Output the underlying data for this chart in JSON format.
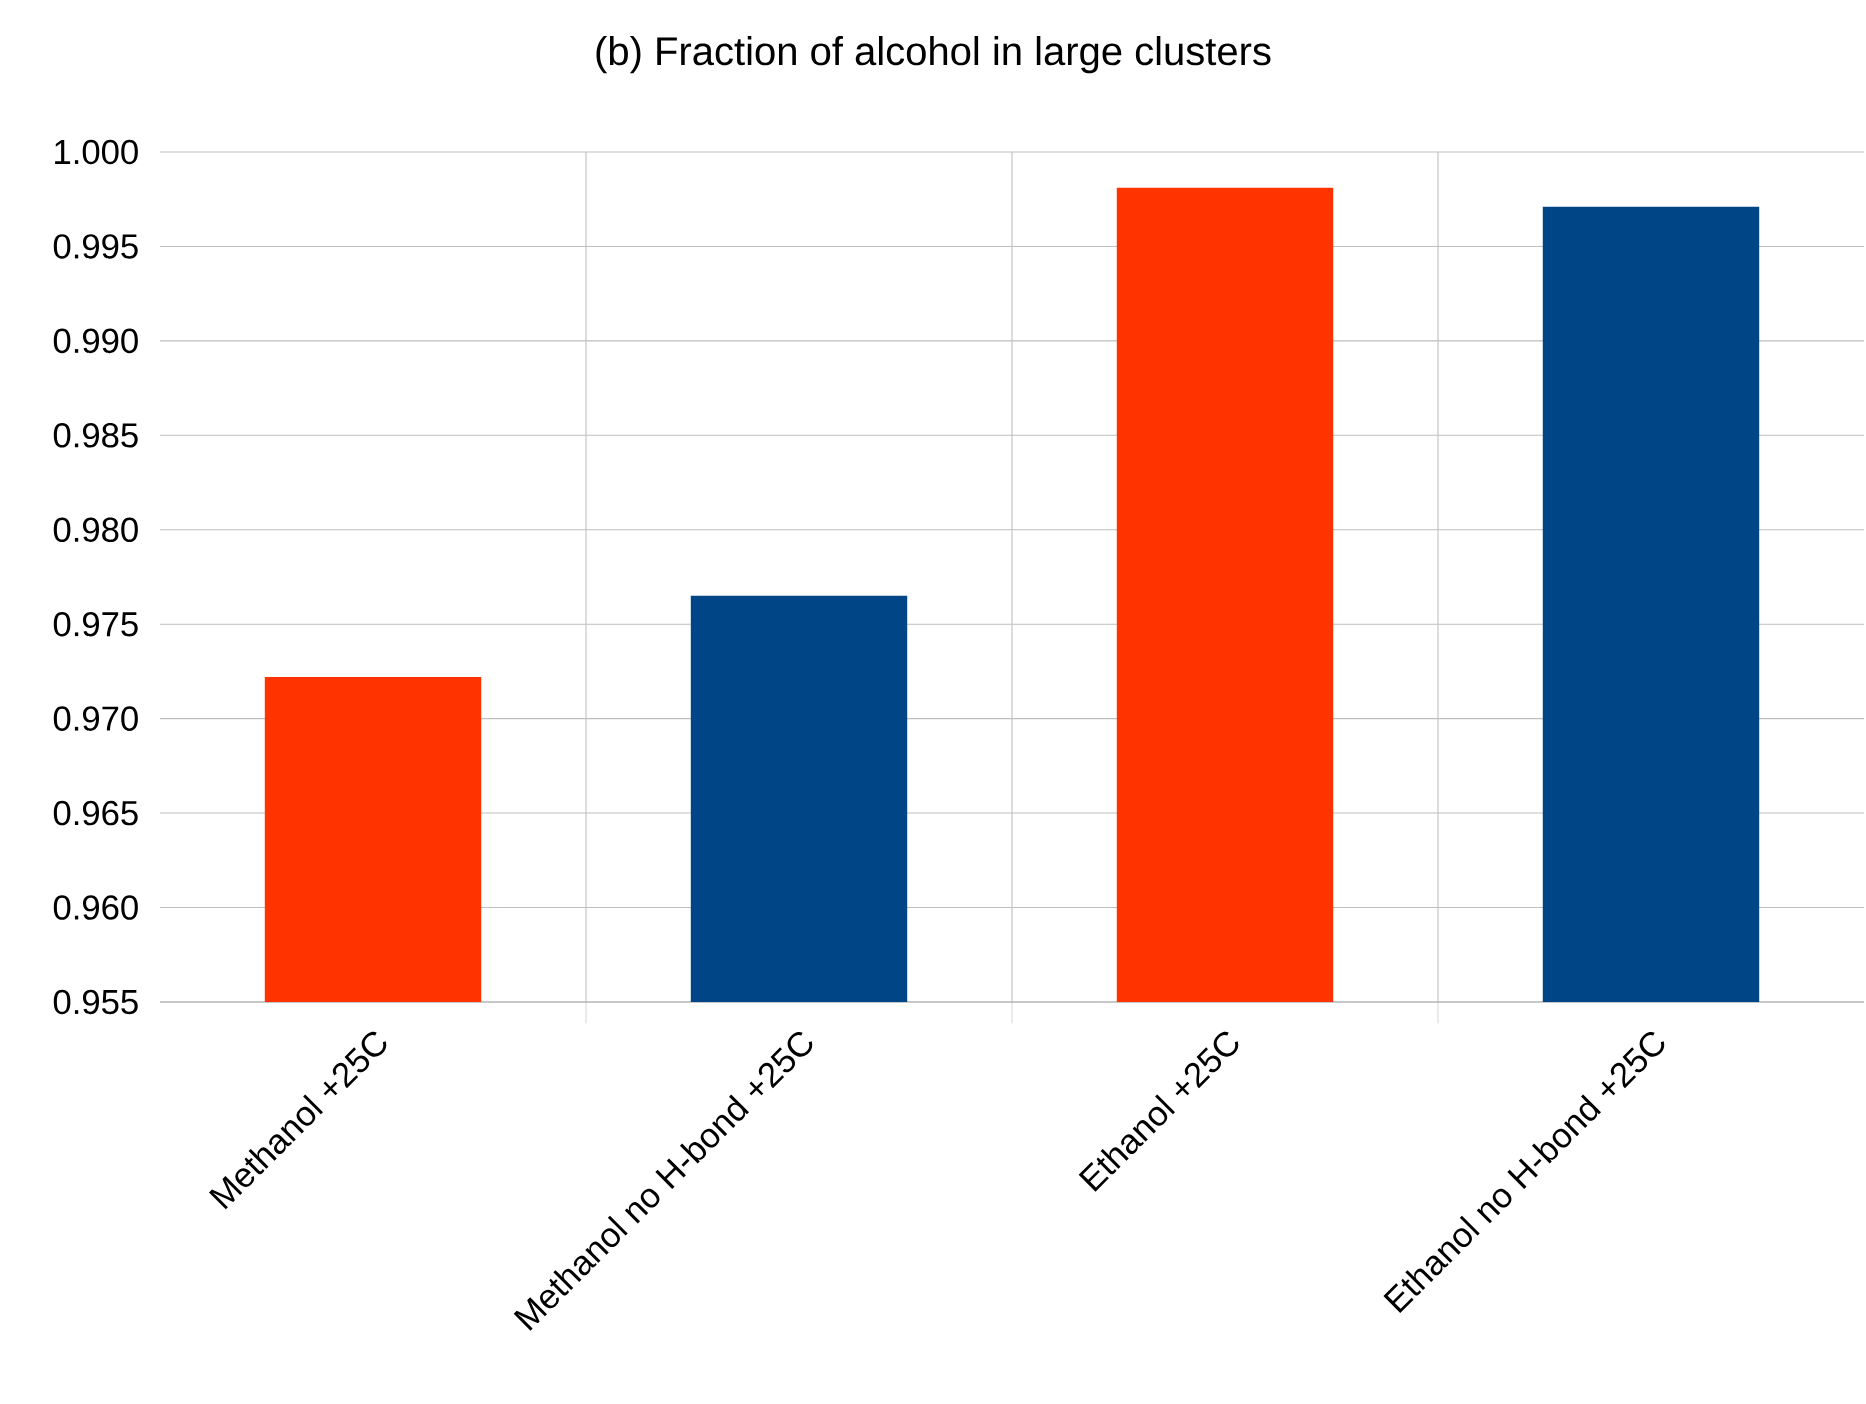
{
  "chart_data": {
    "type": "bar",
    "title": "(b) Fraction of alcohol in large clusters",
    "categories": [
      "Methanol +25C",
      "Methanol no H-bond +25C",
      "Ethanol +25C",
      "Ethanol no H-bond +25C"
    ],
    "values": [
      0.9722,
      0.9765,
      0.9981,
      0.9971
    ],
    "colors": [
      "#ff3300",
      "#004586",
      "#ff3300",
      "#004586"
    ],
    "ylim": [
      0.955,
      1.0
    ],
    "yticks": [
      0.955,
      {
        "value": 0.96,
        "label": "0.960"
      },
      0.965,
      {
        "value": 0.97,
        "label": "0.970"
      },
      0.975,
      {
        "value": 0.98,
        "label": "0.980"
      },
      0.985,
      {
        "value": 0.99,
        "label": "0.990"
      },
      0.995,
      {
        "value": 1.0,
        "label": "1.000"
      }
    ],
    "grid": true
  }
}
